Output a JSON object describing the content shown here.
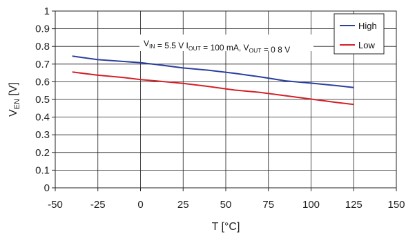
{
  "chart_data": {
    "type": "line",
    "xlabel": "T [°C]",
    "ylabel": {
      "main": "V",
      "sub": "EN",
      "unit": " [V]"
    },
    "xlim": [
      -50,
      150
    ],
    "ylim": [
      0,
      1
    ],
    "xticks": [
      -50,
      -25,
      0,
      25,
      50,
      75,
      100,
      125,
      150
    ],
    "yticks": [
      0,
      0.1,
      0.2,
      0.3,
      0.4,
      0.5,
      0.6,
      0.7,
      0.8,
      0.9,
      1
    ],
    "xtick_labels": [
      "-50",
      "-25",
      "0",
      "25",
      "50",
      "75",
      "100",
      "125",
      "150"
    ],
    "ytick_labels": [
      "0",
      "0.1",
      "0.2",
      "0.3",
      "0.4",
      "0.5",
      "0.6",
      "0.7",
      "0.8",
      "0.9",
      "1"
    ],
    "grid": {
      "x": true,
      "y": true
    },
    "legend_position": "top-right",
    "annotation": {
      "parts": [
        {
          "text": "V",
          "sub": "IN"
        },
        {
          "text": " = 5.5 V  I",
          "sub": "OUT"
        },
        {
          "text": " = 100 mA, V",
          "sub": "OUT"
        },
        {
          "text": " = 0 8 V"
        }
      ]
    },
    "series": [
      {
        "name": "High",
        "color": "#2a3f9e",
        "x": [
          -40,
          -25,
          -10,
          0,
          10,
          25,
          40,
          55,
          70,
          85,
          100,
          115,
          125
        ],
        "y": [
          0.745,
          0.725,
          0.715,
          0.708,
          0.697,
          0.678,
          0.665,
          0.648,
          0.628,
          0.605,
          0.592,
          0.578,
          0.567
        ]
      },
      {
        "name": "Low",
        "color": "#d42027",
        "x": [
          -40,
          -25,
          -10,
          0,
          10,
          25,
          40,
          55,
          70,
          85,
          100,
          115,
          125
        ],
        "y": [
          0.655,
          0.637,
          0.624,
          0.612,
          0.604,
          0.591,
          0.573,
          0.553,
          0.54,
          0.521,
          0.502,
          0.483,
          0.472
        ]
      }
    ]
  }
}
